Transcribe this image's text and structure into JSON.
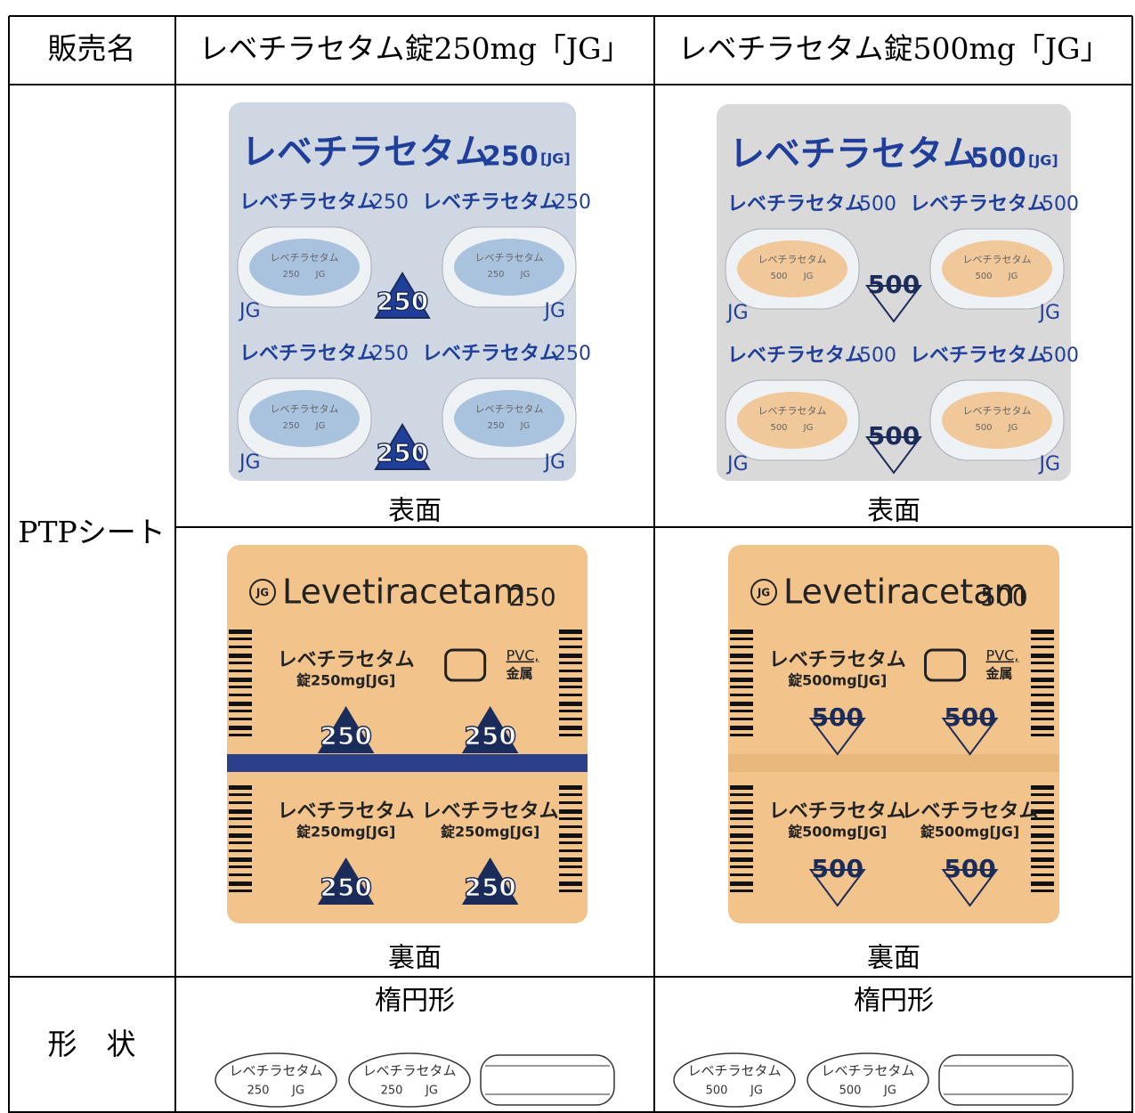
{
  "table": {
    "header": [
      "販売名",
      "レベチラセタム錠250mg「JG」",
      "レベチラセタム錠500mg「JG」"
    ],
    "ptp": {
      "label": "PTPシート",
      "front_captions": [
        "表面",
        "表面"
      ],
      "back_captions": [
        "裏面",
        "裏面"
      ]
    },
    "shape": {
      "label": "形　状",
      "captions": [
        "楕円形",
        "楕円形"
      ]
    }
  },
  "sheets": [
    {
      "brand": "レベチラセタム",
      "strength": "250",
      "mark": "JG",
      "bracket_mark": "[JG]",
      "latin": "Levetiracetam",
      "dose": "錠250mg[JG]",
      "recycle": "PVC,",
      "metal": "金属"
    },
    {
      "brand": "レベチラセタム",
      "strength": "500",
      "mark": "JG",
      "bracket_mark": "[JG]",
      "latin": "Levetiracetam",
      "dose": "錠500mg[JG]",
      "recycle": "PVC,",
      "metal": "金属"
    }
  ]
}
